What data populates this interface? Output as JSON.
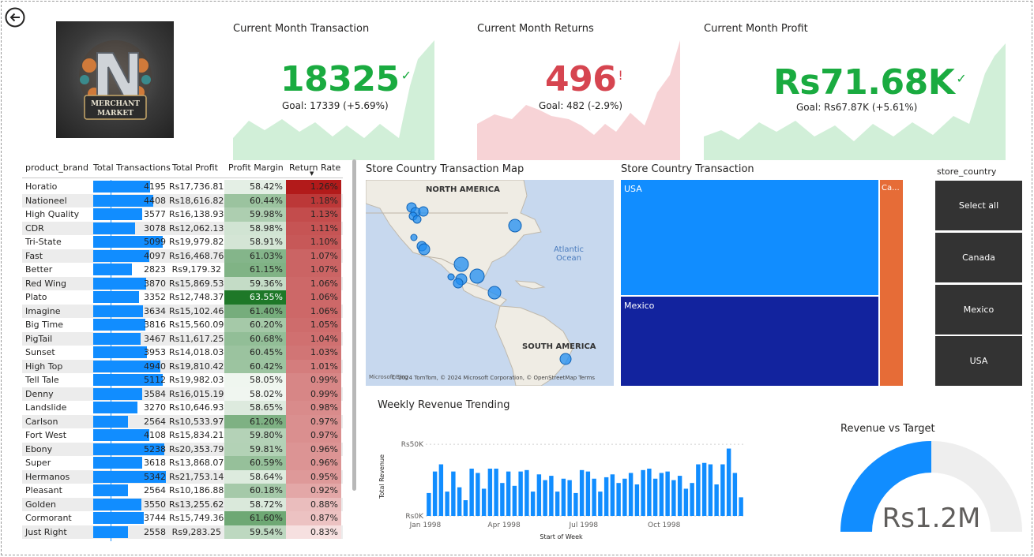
{
  "kpis": [
    {
      "title": "Current Month Transaction",
      "value": "18325",
      "mark": "✓",
      "goal": "Goal: 17339 (+5.69%)",
      "color": "#1aab40",
      "fill": "#d1efd8"
    },
    {
      "title": "Current Month Returns",
      "value": "496",
      "mark": "!",
      "goal": "Goal: 482 (-2.9%)",
      "color": "#d64550",
      "fill": "#f7d3d6"
    },
    {
      "title": "Current Month Profit",
      "value": "Rs71.68K",
      "mark": "✓",
      "goal": "Goal: Rs67.87K (+5.61%)",
      "color": "#1aab40",
      "fill": "#d1efd8"
    }
  ],
  "logo": {
    "line1": "MERCHANT",
    "line2": "MARKET"
  },
  "table": {
    "headers": [
      "product_brand",
      "Total Transactions",
      "Total Profit",
      "Profit Margin",
      "Return Rate"
    ],
    "sort_indicator": "▼",
    "rows": [
      [
        "Horatio",
        4195,
        "Rs17,736.81",
        "58.42%",
        "1.26%"
      ],
      [
        "Nationeel",
        4408,
        "Rs18,616.82",
        "60.44%",
        "1.18%"
      ],
      [
        "High Quality",
        3577,
        "Rs16,138.93",
        "59.98%",
        "1.13%"
      ],
      [
        "CDR",
        3078,
        "Rs12,062.13",
        "58.98%",
        "1.11%"
      ],
      [
        "Tri-State",
        5099,
        "Rs19,979.82",
        "58.91%",
        "1.10%"
      ],
      [
        "Fast",
        4097,
        "Rs16,468.76",
        "61.03%",
        "1.07%"
      ],
      [
        "Better",
        2823,
        "Rs9,179.32",
        "61.15%",
        "1.07%"
      ],
      [
        "Red Wing",
        3870,
        "Rs15,869.53",
        "59.36%",
        "1.06%"
      ],
      [
        "Plato",
        3352,
        "Rs12,748.37",
        "63.55%",
        "1.06%"
      ],
      [
        "Imagine",
        3634,
        "Rs15,102.46",
        "61.40%",
        "1.06%"
      ],
      [
        "Big Time",
        3816,
        "Rs15,560.09",
        "60.20%",
        "1.05%"
      ],
      [
        "PigTail",
        3467,
        "Rs11,617.25",
        "60.68%",
        "1.04%"
      ],
      [
        "Sunset",
        3953,
        "Rs14,018.03",
        "60.45%",
        "1.03%"
      ],
      [
        "High Top",
        4940,
        "Rs19,810.42",
        "60.42%",
        "1.01%"
      ],
      [
        "Tell Tale",
        5112,
        "Rs19,982.03",
        "58.05%",
        "0.99%"
      ],
      [
        "Denny",
        3584,
        "Rs16,015.19",
        "58.02%",
        "0.99%"
      ],
      [
        "Landslide",
        3270,
        "Rs10,646.93",
        "58.65%",
        "0.98%"
      ],
      [
        "Carlson",
        2564,
        "Rs10,533.97",
        "61.20%",
        "0.97%"
      ],
      [
        "Fort West",
        4108,
        "Rs15,834.21",
        "59.80%",
        "0.97%"
      ],
      [
        "Ebony",
        5238,
        "Rs20,353.79",
        "59.81%",
        "0.96%"
      ],
      [
        "Super",
        3618,
        "Rs13,868.07",
        "60.59%",
        "0.96%"
      ],
      [
        "Hermanos",
        5342,
        "Rs21,753.14",
        "58.64%",
        "0.95%"
      ],
      [
        "Pleasant",
        2564,
        "Rs10,186.88",
        "60.18%",
        "0.92%"
      ],
      [
        "Golden",
        3550,
        "Rs13,255.62",
        "58.72%",
        "0.88%"
      ],
      [
        "Cormorant",
        3744,
        "Rs15,749.36",
        "61.60%",
        "0.87%"
      ],
      [
        "Just Right",
        2558,
        "Rs9,283.25",
        "59.54%",
        "0.83%"
      ]
    ]
  },
  "map": {
    "title": "Store Country Transaction Map",
    "labels": {
      "na": "NORTH AMERICA",
      "ocean": "Atlantic\nOcean",
      "sa": "SOUTH AMERICA"
    },
    "attribution": "© 2024 TomTom, © 2024 Microsoft Corporation, © OpenStreetMap  Terms",
    "brand": "Microsoft Bing"
  },
  "treemap": {
    "title": "Store Country Transaction",
    "cells": [
      {
        "label": "USA",
        "color": "#118dff"
      },
      {
        "label": "Mexico",
        "color": "#12239e"
      },
      {
        "label": "Ca...",
        "color": "#e66c37"
      }
    ]
  },
  "slicer": {
    "title": "store_country",
    "options": [
      "Select all",
      "Canada",
      "Mexico",
      "USA"
    ]
  },
  "weekly": {
    "title": "Weekly Revenue Trending",
    "ylabel": "Total Revenue",
    "xlabel": "Start of Week",
    "y_ticks": [
      "Rs50K",
      "Rs0K"
    ],
    "x_ticks": [
      "Jan 1998",
      "Apr 1998",
      "Jul 1998",
      "Oct 1998"
    ]
  },
  "gauge": {
    "title": "Revenue vs Target",
    "value": "Rs1.2M",
    "fraction": 0.5
  },
  "chart_data": {
    "type": "bar",
    "title": "Weekly Revenue Trending",
    "xlabel": "Start of Week",
    "ylabel": "Total Revenue",
    "ylim": [
      0,
      55000
    ],
    "x": [
      "1998-01-05",
      "1998-01-12",
      "1998-01-19",
      "1998-01-26",
      "1998-02-02",
      "1998-02-09",
      "1998-02-16",
      "1998-02-23",
      "1998-03-02",
      "1998-03-09",
      "1998-03-16",
      "1998-03-23",
      "1998-03-30",
      "1998-04-06",
      "1998-04-13",
      "1998-04-20",
      "1998-04-27",
      "1998-05-04",
      "1998-05-11",
      "1998-05-18",
      "1998-05-25",
      "1998-06-01",
      "1998-06-08",
      "1998-06-15",
      "1998-06-22",
      "1998-06-29",
      "1998-07-06",
      "1998-07-13",
      "1998-07-20",
      "1998-07-27",
      "1998-08-03",
      "1998-08-10",
      "1998-08-17",
      "1998-08-24",
      "1998-08-31",
      "1998-09-07",
      "1998-09-14",
      "1998-09-21",
      "1998-09-28",
      "1998-10-05",
      "1998-10-12",
      "1998-10-19",
      "1998-10-26",
      "1998-11-02",
      "1998-11-09",
      "1998-11-16",
      "1998-11-23",
      "1998-11-30",
      "1998-12-07",
      "1998-12-14",
      "1998-12-21",
      "1998-12-28"
    ],
    "values": [
      16000,
      31000,
      36000,
      17000,
      31000,
      20000,
      11000,
      33000,
      30000,
      19000,
      33000,
      33000,
      23000,
      31000,
      21000,
      31000,
      32000,
      17000,
      29000,
      25000,
      28000,
      17000,
      26000,
      25000,
      16000,
      32000,
      31000,
      26000,
      17000,
      27000,
      29000,
      23000,
      26000,
      30000,
      22000,
      32000,
      33000,
      26000,
      30000,
      31000,
      25000,
      28000,
      19000,
      23000,
      36000,
      37000,
      36000,
      22000,
      36000,
      47000,
      30000,
      13000
    ]
  }
}
